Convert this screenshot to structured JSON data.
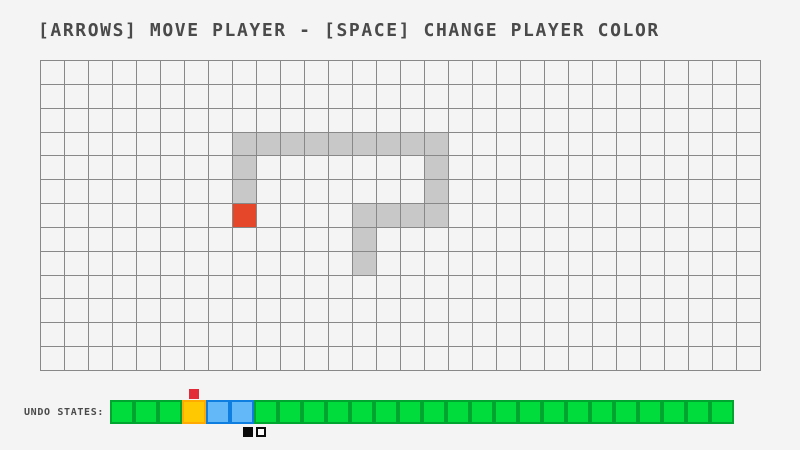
{
  "title": "[ARROWS] MOVE PLAYER - [SPACE] CHANGE PLAYER COLOR",
  "colors": {
    "background": "#F4F4F4",
    "text": "#4A4A4A",
    "grid_line": "#888888",
    "trail": "#C8C8C8",
    "player": "#E5472B",
    "marker": "#E22A38",
    "state_green_fill": "#00DC3C",
    "state_green_border": "#00A530",
    "state_orange_fill": "#FFC800",
    "state_orange_border": "#FFAA00",
    "state_blue_fill": "#63B8F7",
    "state_blue_border": "#0E7FE1",
    "swatch_black": "#0A0A0A",
    "swatch_white": "#FBFBFB"
  },
  "grid": {
    "columns": 30,
    "rows": 13,
    "trail_cells": [
      [
        3,
        8
      ],
      [
        3,
        9
      ],
      [
        3,
        10
      ],
      [
        3,
        11
      ],
      [
        3,
        12
      ],
      [
        3,
        13
      ],
      [
        3,
        14
      ],
      [
        3,
        15
      ],
      [
        3,
        16
      ],
      [
        4,
        8
      ],
      [
        5,
        8
      ],
      [
        4,
        16
      ],
      [
        5,
        16
      ],
      [
        6,
        13
      ],
      [
        6,
        14
      ],
      [
        6,
        15
      ],
      [
        6,
        16
      ],
      [
        7,
        13
      ],
      [
        8,
        13
      ]
    ],
    "player_cell": [
      6,
      8
    ]
  },
  "undo_bar": {
    "label": "UNDO STATES:",
    "marker_index": 3,
    "states": [
      "green",
      "green",
      "green",
      "orange",
      "blue",
      "blue",
      "green",
      "green",
      "green",
      "green",
      "green",
      "green",
      "green",
      "green",
      "green",
      "green",
      "green",
      "green",
      "green",
      "green",
      "green",
      "green",
      "green",
      "green",
      "green",
      "green"
    ]
  },
  "color_swatches": [
    "black",
    "white"
  ]
}
